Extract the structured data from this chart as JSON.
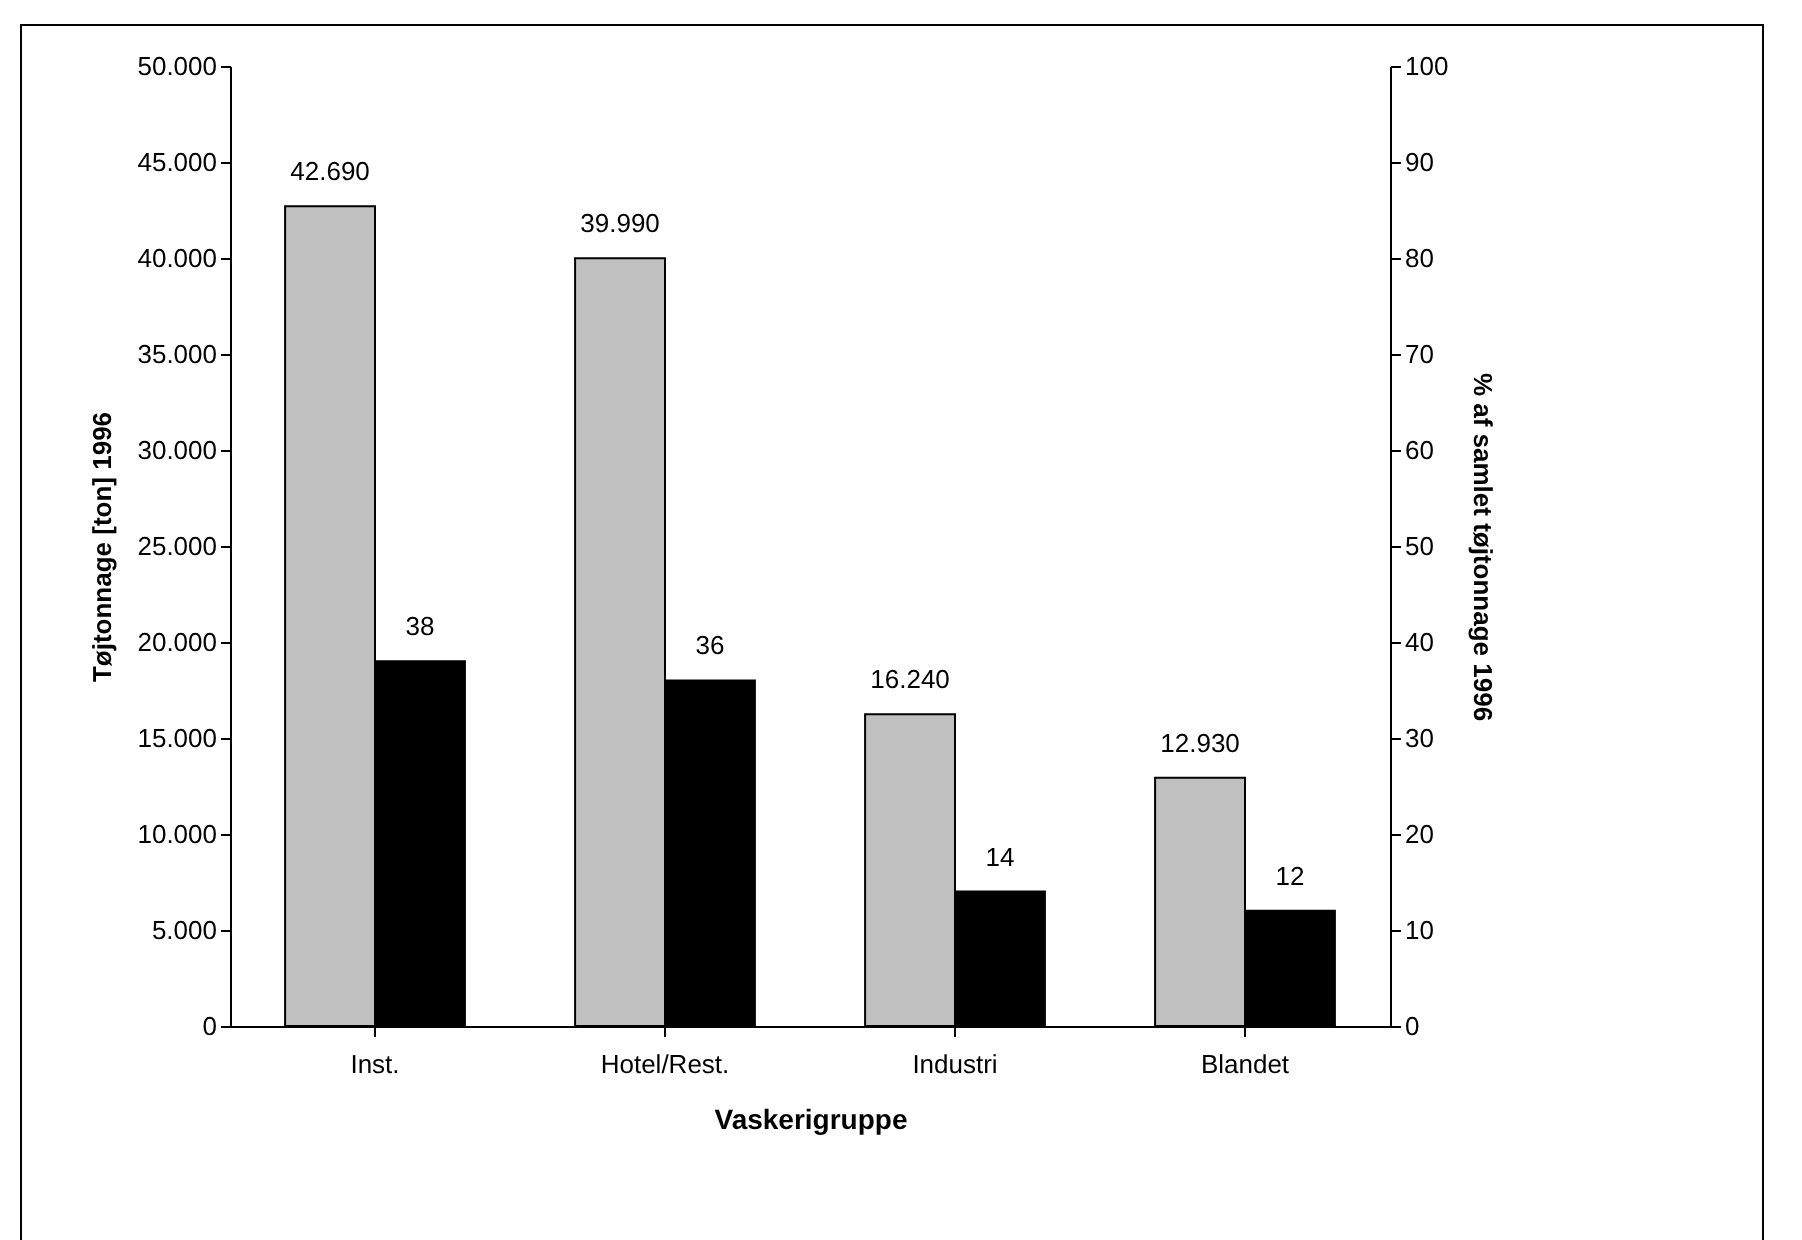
{
  "chart_data": {
    "type": "bar",
    "xlabel": "Vaskerigruppe",
    "ylabel": "Tøjtonnage [ton] 1996",
    "y2label": "% af samlet tøjtonnage 1996",
    "categories": [
      "Inst.",
      "Hotel/Rest.",
      "Industri",
      "Blandet"
    ],
    "series": [
      {
        "color": "#c0c0c0",
        "values": [
          42690,
          39990,
          16240,
          12930
        ],
        "value_labels": [
          "42.690",
          "39.990",
          "16.240",
          "12.930"
        ]
      },
      {
        "color": "#000000",
        "axis": "y2",
        "values": [
          38,
          36,
          14,
          12
        ],
        "value_labels": [
          "38",
          "36",
          "14",
          "12"
        ]
      }
    ],
    "ylim": [
      0,
      50000
    ],
    "yticks": [
      0,
      {
        "value": 5000,
        "label": "5.000"
      },
      {
        "value": 10000,
        "label": "10.000"
      },
      {
        "value": 15000,
        "label": "15.000"
      },
      {
        "value": 20000,
        "label": "20.000"
      },
      {
        "value": 25000,
        "label": "25.000"
      },
      {
        "value": 30000,
        "label": "30.000"
      },
      {
        "value": 35000,
        "label": "35.000"
      },
      {
        "value": 40000,
        "label": "40.000"
      },
      {
        "value": 45000,
        "label": "45.000"
      },
      {
        "value": 50000,
        "label": "50.000"
      }
    ],
    "y2lim": [
      0,
      100
    ],
    "y2ticks": [
      0,
      10,
      20,
      30,
      40,
      50,
      60,
      70,
      80,
      90,
      100
    ],
    "grid": false
  }
}
